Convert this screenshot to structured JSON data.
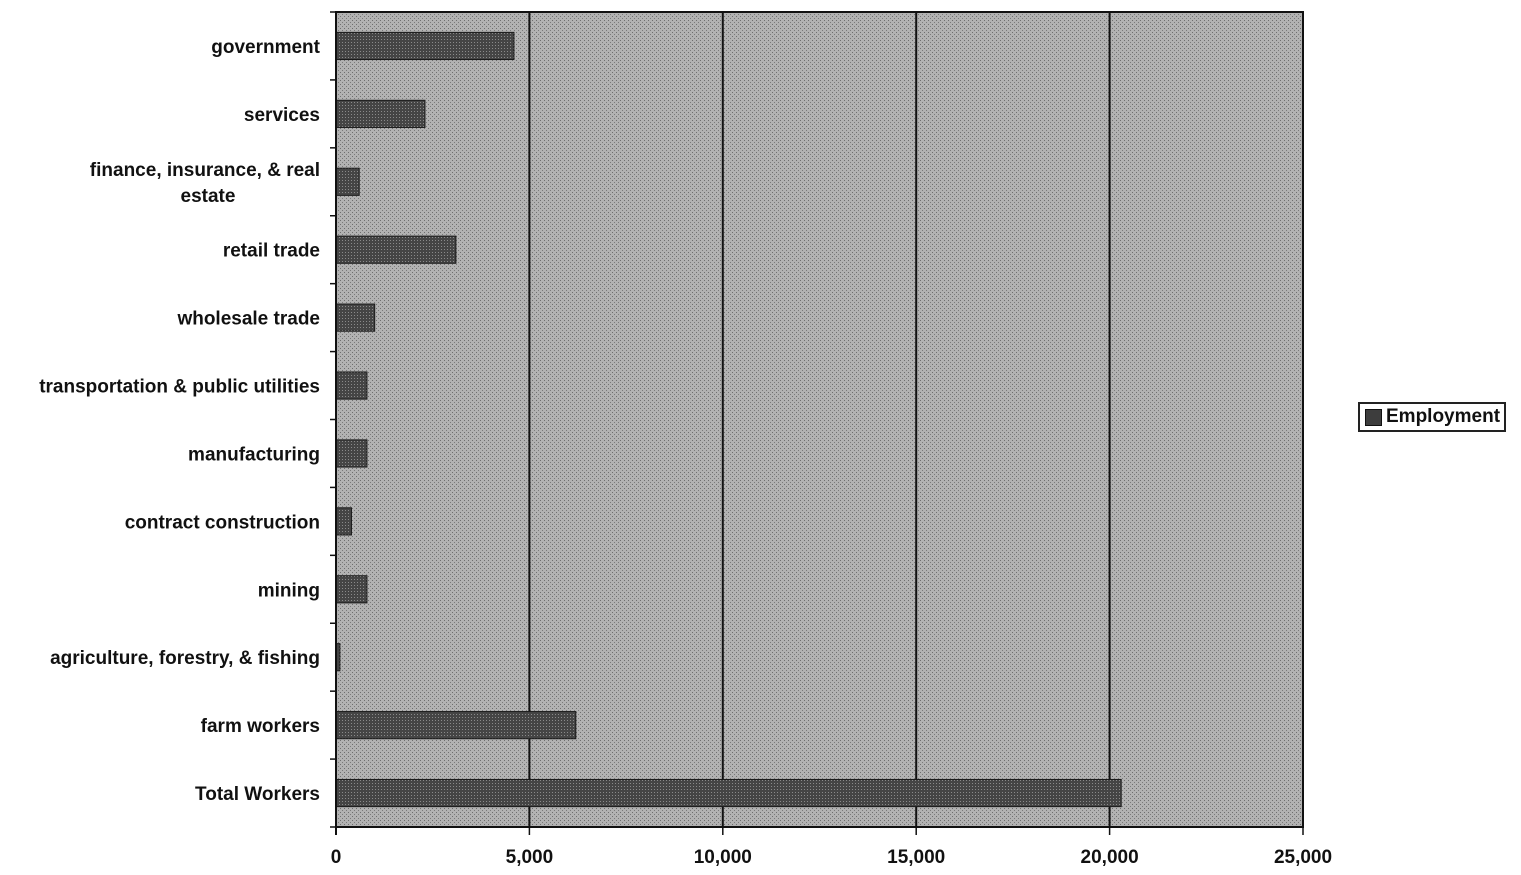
{
  "chart_data": {
    "type": "bar",
    "orientation": "horizontal",
    "categories": [
      "government",
      "services",
      "finance, insurance, & real estate",
      "retail trade",
      "wholesale trade",
      "transportation & public utilities",
      "manufacturing",
      "contract construction",
      "mining",
      "agriculture, forestry, & fishing",
      "farm workers",
      "Total Workers"
    ],
    "category_label_lines": [
      [
        "government"
      ],
      [
        "services"
      ],
      [
        "finance, insurance, & real",
        "estate"
      ],
      [
        "retail trade"
      ],
      [
        "wholesale trade"
      ],
      [
        "transportation & public utilities"
      ],
      [
        "manufacturing"
      ],
      [
        "contract construction"
      ],
      [
        "mining"
      ],
      [
        "agriculture, forestry, & fishing"
      ],
      [
        "farm workers"
      ],
      [
        "Total Workers"
      ]
    ],
    "series": [
      {
        "name": "Employment",
        "values": [
          4600,
          2300,
          600,
          3100,
          1000,
          800,
          800,
          400,
          800,
          100,
          6200,
          20300
        ]
      }
    ],
    "xlim": [
      0,
      25000
    ],
    "x_ticks": [
      0,
      5000,
      10000,
      15000,
      20000,
      25000
    ],
    "x_tick_labels": [
      "0",
      "5,000",
      "10,000",
      "15,000",
      "20,000",
      "25,000"
    ],
    "grid": "vertical",
    "legend": "right",
    "title": "",
    "xlabel": "",
    "ylabel": ""
  },
  "legend": {
    "label": "Employment"
  },
  "colors": {
    "plot_background": "#a9a9a9",
    "bar_fill": "#3d3d3d",
    "gridline": "#111111",
    "axis": "#111111"
  }
}
